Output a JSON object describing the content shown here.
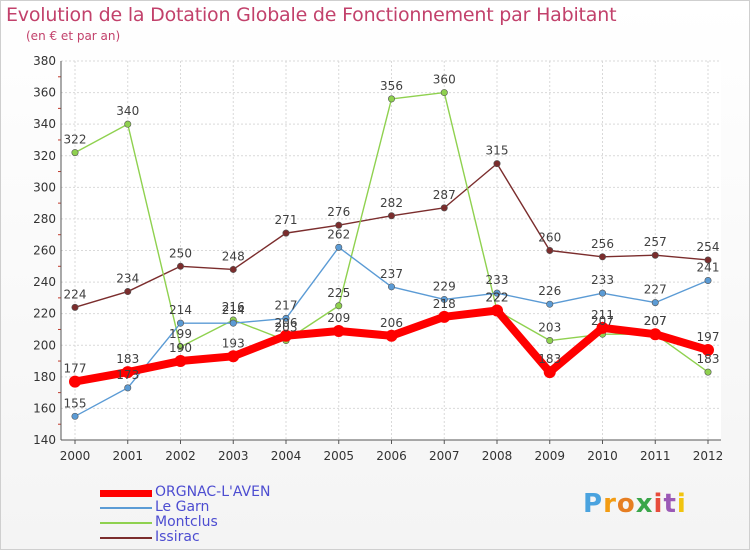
{
  "title": "Evolution de la Dotation Globale de Fonctionnement par Habitant",
  "subtitle": "(en € et par an)",
  "logo": "Proxiti",
  "chart_data": {
    "type": "line",
    "x": [
      "2000",
      "2001",
      "2002",
      "2003",
      "2004",
      "2005",
      "2006",
      "2007",
      "2008",
      "2009",
      "2010",
      "2011",
      "2012"
    ],
    "ylim": [
      140,
      380
    ],
    "yticks": [
      140,
      160,
      180,
      200,
      220,
      240,
      260,
      280,
      300,
      320,
      340,
      360,
      380
    ],
    "grid": true,
    "legend_position": "bottom-left",
    "series": [
      {
        "name": "ORGNAC-L'AVEN",
        "color": "#ff0000",
        "values": [
          177,
          183,
          190,
          193,
          206,
          209,
          206,
          218,
          222,
          183,
          211,
          207,
          197
        ],
        "labels": [
          "177",
          "183",
          "190",
          "193",
          "206",
          "209",
          "206",
          "218",
          "222",
          "183",
          "211",
          "207",
          "197"
        ]
      },
      {
        "name": "Le Garn",
        "color": "#5b9bd5",
        "values": [
          155,
          173,
          214,
          214,
          217,
          262,
          237,
          229,
          233,
          226,
          233,
          227,
          241
        ],
        "labels": [
          "155",
          "173",
          "214",
          "214",
          "217",
          "262",
          "237",
          "229",
          "233",
          "226",
          "233",
          "227",
          "241"
        ]
      },
      {
        "name": "Montclus",
        "color": "#8fd14f",
        "values": [
          322,
          340,
          199,
          216,
          203,
          225,
          356,
          360,
          222,
          203,
          207,
          207,
          183
        ],
        "labels": [
          "322",
          "340",
          "199",
          "216",
          "203",
          "225",
          "356",
          "360",
          "222",
          "203",
          "207",
          "207",
          "183"
        ]
      },
      {
        "name": "Issirac",
        "color": "#7b2d2d",
        "values": [
          224,
          234,
          250,
          248,
          271,
          276,
          282,
          287,
          315,
          260,
          256,
          257,
          254
        ],
        "labels": [
          "224",
          "234",
          "250",
          "248",
          "271",
          "276",
          "282",
          "287",
          "315",
          "260",
          "256",
          "257",
          "254"
        ]
      }
    ]
  }
}
